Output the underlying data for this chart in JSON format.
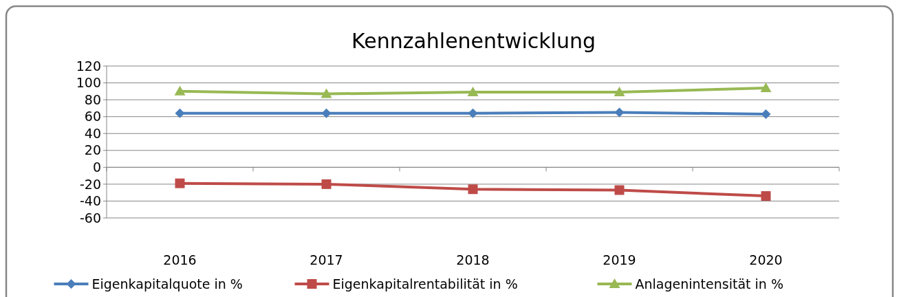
{
  "chart_data": {
    "type": "line",
    "title": "Kennzahlenentwicklung",
    "categories": [
      "2016",
      "2017",
      "2018",
      "2019",
      "2020"
    ],
    "series": [
      {
        "name": "Eigenkapitalquote in %",
        "color": "#4a7ebb",
        "values": [
          64,
          64,
          64,
          65,
          63
        ],
        "marker": "diamond"
      },
      {
        "name": "Eigenkapitalrentabilität in %",
        "color": "#be4b48",
        "values": [
          -19,
          -20,
          -26,
          -27,
          -34
        ],
        "marker": "square"
      },
      {
        "name": "Anlagenintensität in %",
        "color": "#98b954",
        "values": [
          90,
          87,
          89,
          89,
          94
        ],
        "marker": "triangle"
      }
    ],
    "ylim": [
      -60,
      120
    ],
    "yticks": [
      -60,
      -40,
      -20,
      0,
      20,
      40,
      60,
      80,
      100,
      120
    ],
    "grid": "y",
    "legend": "bottom"
  }
}
